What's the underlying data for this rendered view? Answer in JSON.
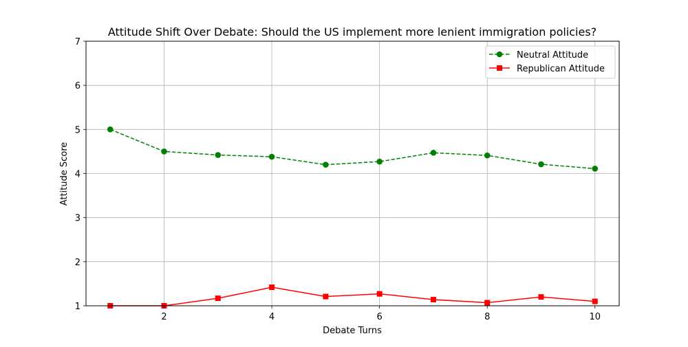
{
  "chart_data": {
    "type": "line",
    "title": "Attitude Shift Over Debate: Should the US implement more lenient immigration policies?",
    "xlabel": "Debate Turns",
    "ylabel": "Attitude Score",
    "xlim": [
      0.55,
      10.45
    ],
    "ylim": [
      1,
      7
    ],
    "x_ticks": [
      2,
      4,
      6,
      8,
      10
    ],
    "y_ticks": [
      1,
      2,
      3,
      4,
      5,
      6,
      7
    ],
    "grid": true,
    "legend_position": "top-right",
    "x": [
      1,
      2,
      3,
      4,
      5,
      6,
      7,
      8,
      9,
      10
    ],
    "series": [
      {
        "name": "Neutral Attitude",
        "color": "#008000",
        "line_style": "dashed",
        "marker": "circle",
        "values": [
          5.0,
          4.5,
          4.42,
          4.38,
          4.2,
          4.27,
          4.47,
          4.41,
          4.21,
          4.11
        ]
      },
      {
        "name": "Republican Attitude",
        "color": "#ff0000",
        "line_style": "solid",
        "marker": "square",
        "values": [
          1.0,
          1.0,
          1.17,
          1.42,
          1.21,
          1.27,
          1.14,
          1.07,
          1.2,
          1.1
        ]
      }
    ]
  }
}
